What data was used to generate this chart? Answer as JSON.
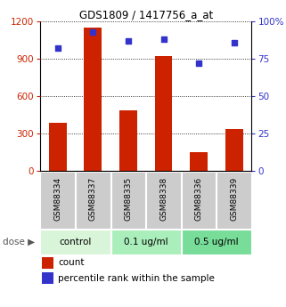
{
  "title": "GDS1809 / 1417756_a_at",
  "categories": [
    "GSM88334",
    "GSM88337",
    "GSM88335",
    "GSM88338",
    "GSM88336",
    "GSM88339"
  ],
  "bar_values": [
    390,
    1150,
    490,
    920,
    155,
    340
  ],
  "dot_values": [
    82,
    93,
    87,
    88,
    72,
    86
  ],
  "ylim_left": [
    0,
    1200
  ],
  "ylim_right": [
    0,
    100
  ],
  "yticks_left": [
    0,
    300,
    600,
    900,
    1200
  ],
  "yticks_right": [
    0,
    25,
    50,
    75,
    100
  ],
  "ytick_labels_left": [
    "0",
    "300",
    "600",
    "900",
    "1200"
  ],
  "ytick_labels_right": [
    "0",
    "25",
    "50",
    "75",
    "100%"
  ],
  "bar_color": "#cc2200",
  "dot_color": "#3333cc",
  "left_tick_color": "#cc2200",
  "right_tick_color": "#3333cc",
  "groups": [
    {
      "label": "control",
      "span": [
        0,
        2
      ],
      "color": "#d9f5d9"
    },
    {
      "label": "0.1 ug/ml",
      "span": [
        2,
        4
      ],
      "color": "#aaeebb"
    },
    {
      "label": "0.5 ug/ml",
      "span": [
        4,
        6
      ],
      "color": "#77dd99"
    }
  ],
  "dose_label": "dose",
  "legend_count": "count",
  "legend_percentile": "percentile rank within the sample",
  "grid_color": "#000000",
  "tick_label_area_color": "#cccccc",
  "bar_width": 0.5
}
